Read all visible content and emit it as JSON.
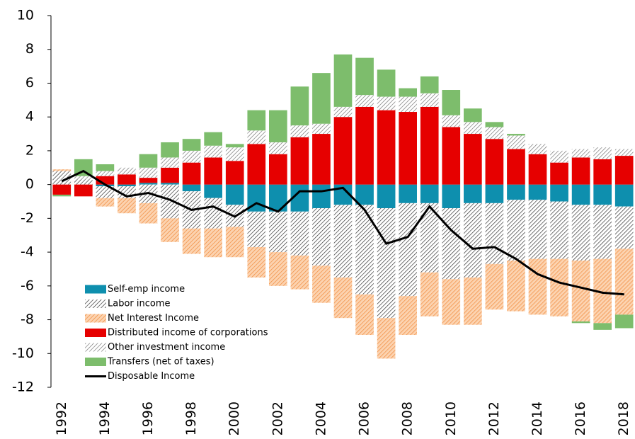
{
  "chart_data": {
    "type": "bar",
    "categories": [
      "1992",
      null,
      "1994",
      null,
      "1996",
      null,
      "1998",
      null,
      "2000",
      null,
      "2002",
      null,
      "2004",
      null,
      "2006",
      null,
      "2008",
      null,
      "2010",
      null,
      "2012",
      null,
      "2014",
      null,
      "2016",
      null,
      "2018"
    ],
    "series": [
      {
        "name": "Self-emp income",
        "color": "#0e8fae",
        "hatch": false,
        "values": [
          0,
          0,
          -0.1,
          -0.1,
          0.1,
          0.1,
          -0.4,
          -0.8,
          -1.2,
          -1.6,
          -1.6,
          -1.6,
          -1.4,
          -1.2,
          -1.2,
          -1.4,
          -1.1,
          -1.1,
          -1.4,
          -1.1,
          -1.1,
          -0.9,
          -0.9,
          -1.0,
          -1.2,
          -1.2,
          -1.3
        ]
      },
      {
        "name": "Labor income",
        "color": "#333333",
        "hatch": true,
        "values": [
          0.8,
          0.3,
          -0.7,
          -0.7,
          -1.1,
          -2.0,
          -2.2,
          -1.8,
          -1.3,
          -2.1,
          -2.4,
          -2.6,
          -3.4,
          -4.3,
          -5.3,
          -6.5,
          -5.5,
          -4.1,
          -4.2,
          -4.4,
          -3.6,
          -3.6,
          -3.5,
          -3.4,
          -3.3,
          -3.2,
          -2.5
        ]
      },
      {
        "name": "Net Interest Income",
        "color": "#f08a3c",
        "hatch": true,
        "values": [
          0.1,
          0,
          -0.5,
          -0.9,
          -1.2,
          -1.4,
          -1.5,
          -1.7,
          -1.8,
          -1.8,
          -2.0,
          -2.0,
          -2.2,
          -2.4,
          -2.4,
          -2.4,
          -2.3,
          -2.6,
          -2.7,
          -2.8,
          -2.7,
          -3.0,
          -3.3,
          -3.4,
          -3.6,
          -3.8,
          -3.9
        ]
      },
      {
        "name": "Distributed income of corporations",
        "color": "#e60000",
        "hatch": false,
        "values": [
          -0.6,
          -0.7,
          0.5,
          0.6,
          0.3,
          0.9,
          1.3,
          1.6,
          1.4,
          2.4,
          1.8,
          2.8,
          3.0,
          4.0,
          4.6,
          4.4,
          4.3,
          4.6,
          3.4,
          3.0,
          2.7,
          2.1,
          1.8,
          1.3,
          1.6,
          1.5,
          1.7
        ]
      },
      {
        "name": "Other investment income",
        "color": "#777777",
        "hatch": true,
        "values": [
          0,
          0.2,
          0.3,
          0.4,
          0.6,
          0.6,
          0.7,
          0.7,
          0.8,
          0.8,
          0.7,
          0.7,
          0.6,
          0.6,
          0.7,
          0.8,
          0.9,
          0.8,
          0.7,
          0.7,
          0.7,
          0.8,
          0.6,
          0.7,
          0.5,
          0.7,
          0.4
        ]
      },
      {
        "name": "Transfers (net of taxes)",
        "color": "#7dbd6c",
        "hatch": false,
        "values": [
          -0.1,
          1.0,
          0.4,
          0,
          0.8,
          0.9,
          0.7,
          0.8,
          0.2,
          1.2,
          1.9,
          2.3,
          3.0,
          3.1,
          2.2,
          1.6,
          0.5,
          1.0,
          1.5,
          0.8,
          0.3,
          0.1,
          0,
          0,
          -0.1,
          -0.4,
          -0.8
        ]
      },
      {
        "name": "Disposable Income",
        "color": "#000000",
        "line": true,
        "values": [
          0.2,
          0.8,
          0.0,
          -0.7,
          -0.5,
          -0.9,
          -1.5,
          -1.3,
          -1.9,
          -1.1,
          -1.6,
          -0.4,
          -0.4,
          -0.2,
          -1.5,
          -3.5,
          -3.1,
          -1.3,
          -2.7,
          -3.8,
          -3.7,
          -4.4,
          -5.3,
          -5.8,
          -6.1,
          -6.4,
          -6.5
        ]
      }
    ],
    "ylim": [
      -12,
      10
    ],
    "yticks": [
      -12,
      -10,
      -8,
      -6,
      -4,
      -2,
      0,
      2,
      4,
      6,
      8,
      10
    ],
    "legend": "lower left"
  }
}
